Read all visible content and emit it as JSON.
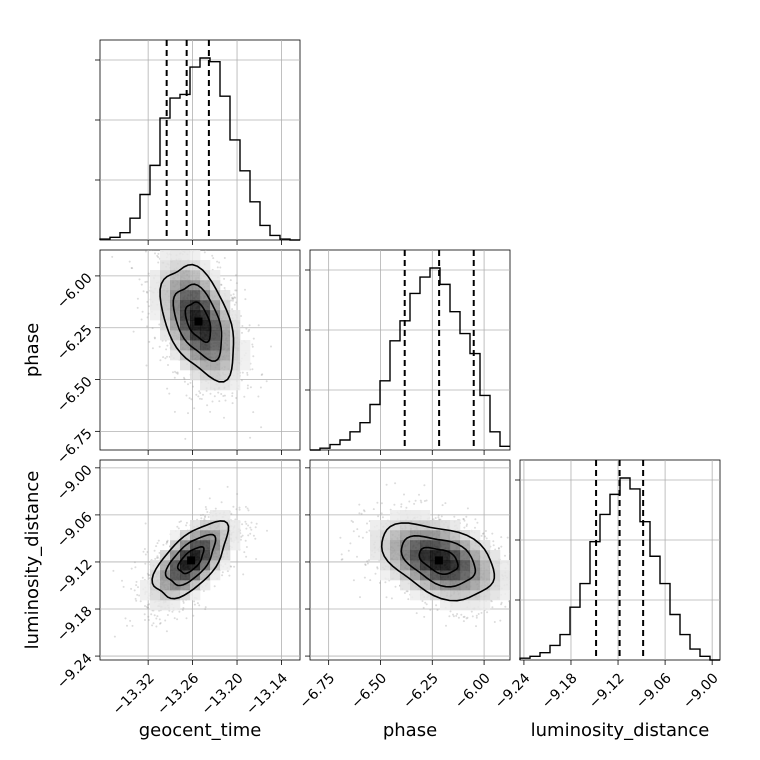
{
  "chart_data": {
    "type": "corner",
    "parameters": [
      "geocent_time",
      "phase",
      "luminosity_distance"
    ],
    "axis_labels": {
      "geocent_time": "geocent_time",
      "phase": "phase",
      "luminosity_distance": "luminosity_distance"
    },
    "ranges": {
      "geocent_time": [
        -13.385,
        -13.115
      ],
      "phase": [
        -6.84,
        -5.875
      ],
      "luminosity_distance": [
        -9.245,
        -8.99
      ]
    },
    "ticks": {
      "geocent_time": [
        -13.32,
        -13.26,
        -13.2,
        -13.14
      ],
      "phase": [
        -6.75,
        -6.5,
        -6.25,
        -6.0
      ],
      "luminosity_distance": [
        -9.24,
        -9.18,
        -9.12,
        -9.06,
        -9.0
      ]
    },
    "tick_labels": {
      "geocent_time": [
        "−13.32",
        "−13.26",
        "−13.20",
        "−13.14"
      ],
      "phase": [
        "−6.75",
        "−6.50",
        "−6.25",
        "−6.00"
      ],
      "luminosity_distance": [
        "−9.24",
        "−9.18",
        "−9.12",
        "−9.06",
        "−9.00"
      ]
    },
    "quantiles": {
      "geocent_time": [
        -13.295,
        -13.268,
        -13.238
      ],
      "phase": [
        -6.383,
        -6.217,
        -6.05
      ],
      "luminosity_distance": [
        -9.148,
        -9.118,
        -9.088
      ]
    },
    "histograms": {
      "geocent_time": {
        "bin_edges": [
          -13.385,
          -13.3715,
          -13.358,
          -13.3445,
          -13.331,
          -13.3175,
          -13.304,
          -13.2905,
          -13.277,
          -13.2635,
          -13.25,
          -13.2365,
          -13.223,
          -13.2095,
          -13.196,
          -13.1825,
          -13.169,
          -13.1555,
          -13.142,
          -13.1285,
          -13.115
        ],
        "counts": [
          0.005,
          0.015,
          0.04,
          0.12,
          0.25,
          0.41,
          0.67,
          0.78,
          0.8,
          0.95,
          1.0,
          0.98,
          0.79,
          0.55,
          0.38,
          0.21,
          0.08,
          0.025,
          0.005,
          0.0
        ]
      },
      "phase": {
        "bin_edges": [
          -6.84,
          -6.79175,
          -6.7435,
          -6.69525,
          -6.647,
          -6.59875,
          -6.5505,
          -6.50225,
          -6.454,
          -6.40575,
          -6.3575,
          -6.30925,
          -6.261,
          -6.21275,
          -6.1645,
          -6.11625,
          -6.068,
          -6.01975,
          -5.9715,
          -5.92325,
          -5.875
        ],
        "counts": [
          0.0,
          0.01,
          0.03,
          0.055,
          0.1,
          0.15,
          0.25,
          0.38,
          0.6,
          0.71,
          0.86,
          0.95,
          1.0,
          0.91,
          0.76,
          0.64,
          0.53,
          0.3,
          0.1,
          0.02
        ]
      },
      "luminosity_distance": {
        "bin_edges": [
          -9.245,
          -9.23225,
          -9.2195,
          -9.20675,
          -9.194,
          -9.18125,
          -9.1685,
          -9.15575,
          -9.143,
          -9.13025,
          -9.1175,
          -9.10475,
          -9.092,
          -9.07925,
          -9.0665,
          -9.05375,
          -9.041,
          -9.02825,
          -9.0155,
          -9.00275,
          -8.99
        ],
        "counts": [
          0.01,
          0.02,
          0.04,
          0.08,
          0.14,
          0.29,
          0.42,
          0.65,
          0.8,
          0.91,
          1.0,
          0.94,
          0.76,
          0.57,
          0.42,
          0.25,
          0.14,
          0.06,
          0.02,
          0.0
        ]
      }
    },
    "joint_panels": [
      {
        "x": "geocent_time",
        "y": "phase",
        "centroid": [
          -13.252,
          -6.22
        ],
        "sigma": [
          0.031,
          0.17
        ],
        "correlation": -0.45,
        "contour_levels": [
          1,
          2,
          3
        ]
      },
      {
        "x": "geocent_time",
        "y": "luminosity_distance",
        "centroid": [
          -13.262,
          -9.118
        ],
        "sigma": [
          0.031,
          0.03
        ],
        "correlation": 0.62,
        "contour_levels": [
          1,
          2,
          3
        ]
      },
      {
        "x": "phase",
        "y": "luminosity_distance",
        "centroid": [
          -6.218,
          -9.118
        ],
        "sigma": [
          0.17,
          0.03
        ],
        "correlation": -0.4,
        "contour_levels": [
          1,
          2,
          3
        ]
      }
    ],
    "grid": true
  }
}
